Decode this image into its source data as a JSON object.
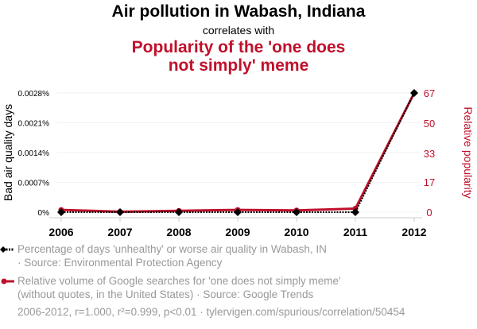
{
  "title": "Air pollution in Wabash, Indiana",
  "subtitle": "correlates with",
  "title2": "Popularity of the 'one does not simply' meme",
  "legend": [
    {
      "line1": "Percentage of days 'unhealthy' or worse air quality in Wabash, IN",
      "line2": "· Source: Environmental Protection Agency",
      "color": "#000000"
    },
    {
      "line1": "Relative volume of Google searches for 'one does not simply meme'",
      "line2": "(without quotes, in the United States) · Source: Google Trends",
      "color": "#c0102b"
    }
  ],
  "footer": "2006-2012, r=1.000, r²=0.999, p<0.01 · tylervigen.com/spurious/correlation/50454",
  "chart_data": {
    "type": "line",
    "x": [
      2006,
      2007,
      2008,
      2009,
      2010,
      2011,
      2012
    ],
    "xtick_labels": [
      "2006",
      "2007",
      "2008",
      "2009",
      "2010",
      "2011",
      "2012"
    ],
    "ylabel_left": "Bad air quality days",
    "ylabel_right": "Relative popularity",
    "ylim_left": [
      0,
      0.0028
    ],
    "ylim_right": [
      0,
      67
    ],
    "left_ticks": [
      0,
      0.0007,
      0.0014,
      0.0021,
      0.0028
    ],
    "left_tick_labels": [
      "0%",
      "0.0007%",
      "0.0014%",
      "0.0021%",
      "0.0028%"
    ],
    "right_ticks": [
      0,
      17,
      33,
      50,
      67
    ],
    "right_tick_labels": [
      "0",
      "17",
      "33",
      "50",
      "67"
    ],
    "series": [
      {
        "name": "Percentage of days 'unhealthy' or worse air quality in Wabash, IN",
        "axis": "left",
        "color": "#000000",
        "values": [
          0,
          0,
          0,
          0,
          0,
          0,
          0.0028
        ]
      },
      {
        "name": "Relative volume of Google searches for 'one does not simply meme'",
        "axis": "right",
        "color": "#c0102b",
        "values": [
          1.3,
          0.3,
          0.8,
          1.3,
          1,
          2,
          67
        ]
      }
    ],
    "grid": true
  }
}
